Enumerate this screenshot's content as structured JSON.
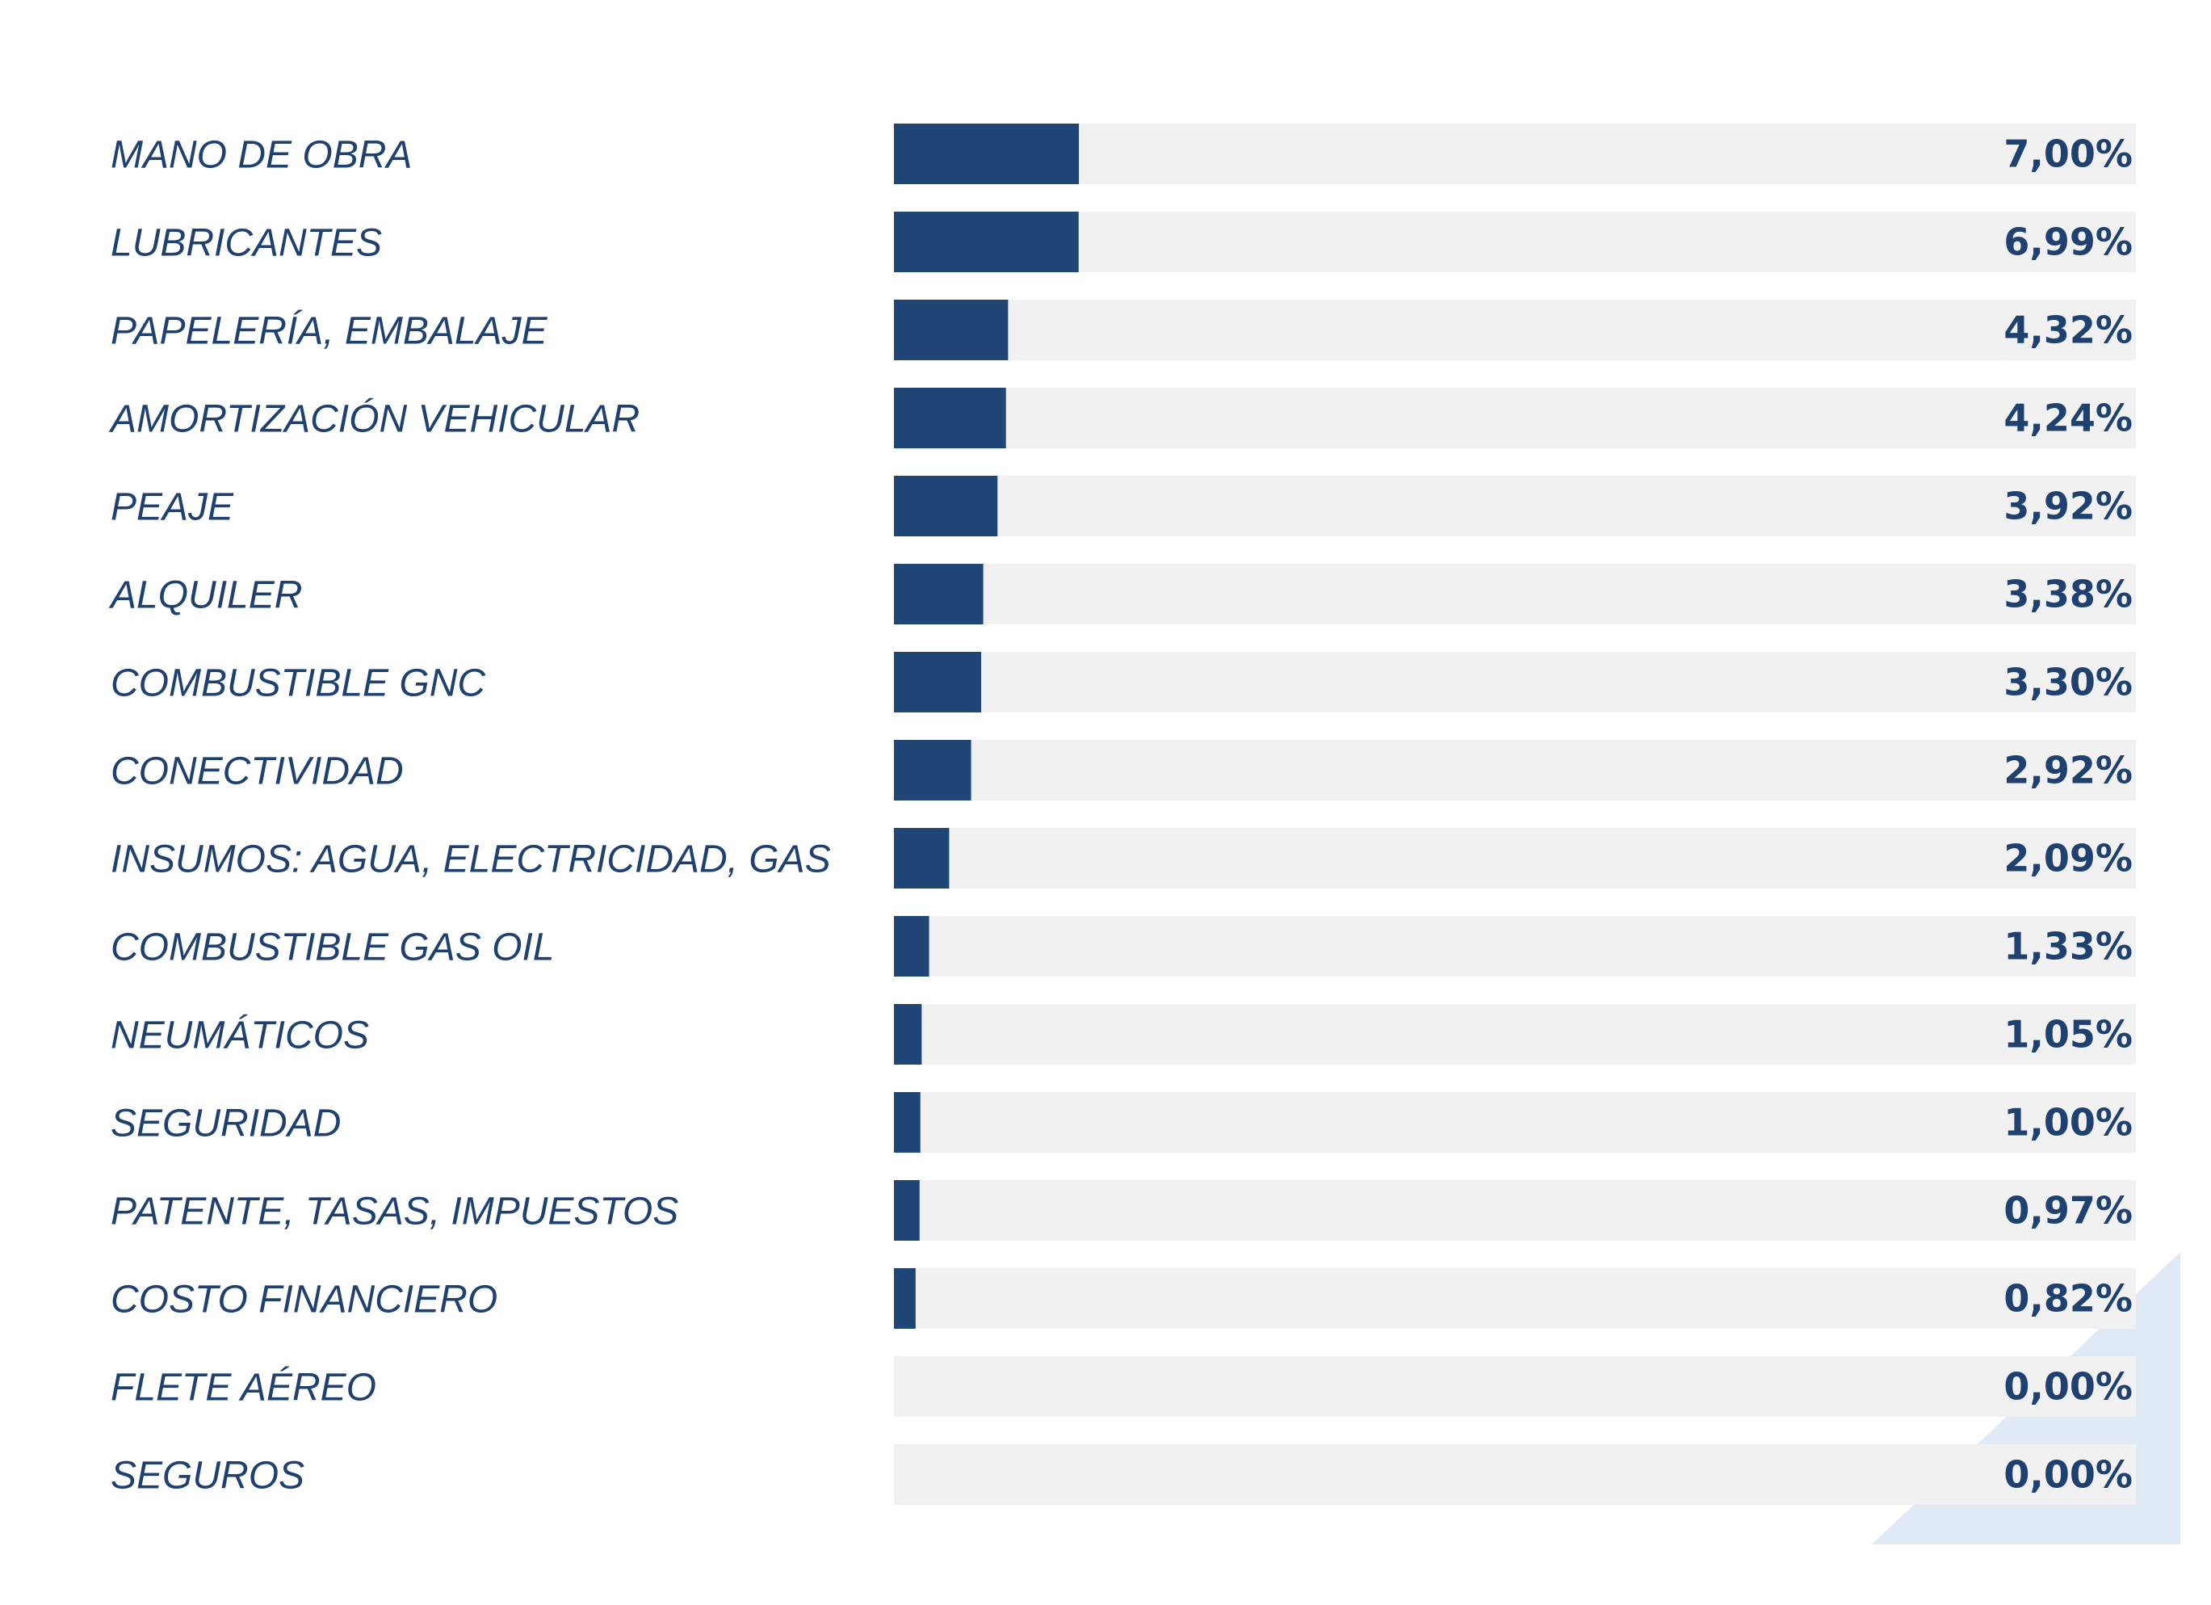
{
  "chart_data": {
    "type": "bar",
    "orientation": "horizontal",
    "categories": [
      "MANO DE OBRA",
      "LUBRICANTES",
      "PAPELERÍA, EMBALAJE",
      "AMORTIZACIÓN VEHICULAR",
      "PEAJE",
      "ALQUILER",
      "COMBUSTIBLE GNC",
      "CONECTIVIDAD",
      "INSUMOS: AGUA, ELECTRICIDAD, GAS",
      "COMBUSTIBLE GAS OIL",
      "NEUMÁTICOS",
      "SEGURIDAD",
      "PATENTE, TASAS, IMPUESTOS",
      "COSTO FINANCIERO",
      "FLETE AÉREO",
      "SEGUROS"
    ],
    "values": [
      7.0,
      6.99,
      4.32,
      4.24,
      3.92,
      3.38,
      3.3,
      2.92,
      2.09,
      1.33,
      1.05,
      1.0,
      0.97,
      0.82,
      0.0,
      0.0
    ],
    "value_labels": [
      "7,00%",
      "6,99%",
      "4,32%",
      "4,24%",
      "3,92%",
      "3,38%",
      "3,30%",
      "2,92%",
      "2,09%",
      "1,33%",
      "1,05%",
      "1,00%",
      "0,97%",
      "0,82%",
      "0,00%",
      "0,00%"
    ],
    "unit": "%",
    "xlim": [
      0,
      47
    ],
    "grid": false,
    "legend": "none",
    "colors": {
      "bar": "#1f4677",
      "track": "#f1f1f1",
      "text": "#1f4170",
      "decoration": "#dfeaf6"
    }
  }
}
